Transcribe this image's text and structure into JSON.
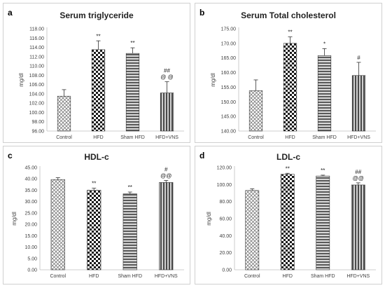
{
  "colors": {
    "axis": "#bfbfbf",
    "text": "#404040",
    "bar_stroke": "#333333",
    "error_bar": "#333333"
  },
  "chart_data": [
    {
      "panel_letter": "a",
      "title": "Serum triglyceride",
      "type": "bar",
      "ylabel": "mg/dl",
      "categories": [
        "Control",
        "HFD",
        "Sham HFD",
        "HFD+VNS"
      ],
      "values": [
        103.5,
        113.5,
        112.7,
        104.2
      ],
      "errors": [
        1.4,
        1.9,
        1.2,
        2.4
      ],
      "annotations": [
        "",
        "**",
        "**",
        "##\n@ @"
      ],
      "ylim": [
        96.0,
        118.0
      ],
      "yticks": [
        "96.00",
        "98.00",
        "100.00",
        "102.00",
        "104.00",
        "106.00",
        "108.00",
        "110.00",
        "112.00",
        "114.00",
        "116.00",
        "118.00"
      ]
    },
    {
      "panel_letter": "b",
      "title": "Serum Total cholesterol",
      "type": "bar",
      "ylabel": "mg/dl",
      "categories": [
        "Control",
        "HFD",
        "Sham HFD",
        "HFD+VNS"
      ],
      "values": [
        153.8,
        170.0,
        165.8,
        159.0
      ],
      "errors": [
        3.7,
        2.2,
        2.4,
        4.5
      ],
      "annotations": [
        "",
        "**",
        "*",
        "#"
      ],
      "ylim": [
        140.0,
        175.0
      ],
      "yticks": [
        "140.00",
        "145.00",
        "150.00",
        "155.00",
        "160.00",
        "165.00",
        "170.00",
        "175.00"
      ]
    },
    {
      "panel_letter": "c",
      "title": "HDL-c",
      "type": "bar",
      "ylabel": "mg/dl",
      "categories": [
        "Control",
        "HFD",
        "Sham HFD",
        "HFD+VNS"
      ],
      "values": [
        39.7,
        35.0,
        33.4,
        38.4
      ],
      "errors": [
        0.8,
        0.9,
        0.8,
        0.9
      ],
      "annotations": [
        "",
        "**",
        "**",
        "#\n@@"
      ],
      "ylim": [
        0.0,
        45.0
      ],
      "yticks": [
        "0.00",
        "5.00",
        "10.00",
        "15.00",
        "20.00",
        "25.00",
        "30.00",
        "35.00",
        "40.00",
        "45.00"
      ]
    },
    {
      "panel_letter": "d",
      "title": "LDL-c",
      "type": "bar",
      "ylabel": "mg/dl",
      "categories": [
        "Control",
        "HFD",
        "Sham HFD",
        "HFD+VNS"
      ],
      "values": [
        93.0,
        112.0,
        110.0,
        99.5
      ],
      "errors": [
        2.0,
        1.2,
        1.0,
        2.5
      ],
      "annotations": [
        "",
        "**",
        "**",
        "##\n@@"
      ],
      "ylim": [
        0.0,
        120.0
      ],
      "yticks": [
        "0.00",
        "20.00",
        "40.00",
        "60.00",
        "80.00",
        "100.00",
        "120.00"
      ]
    }
  ]
}
